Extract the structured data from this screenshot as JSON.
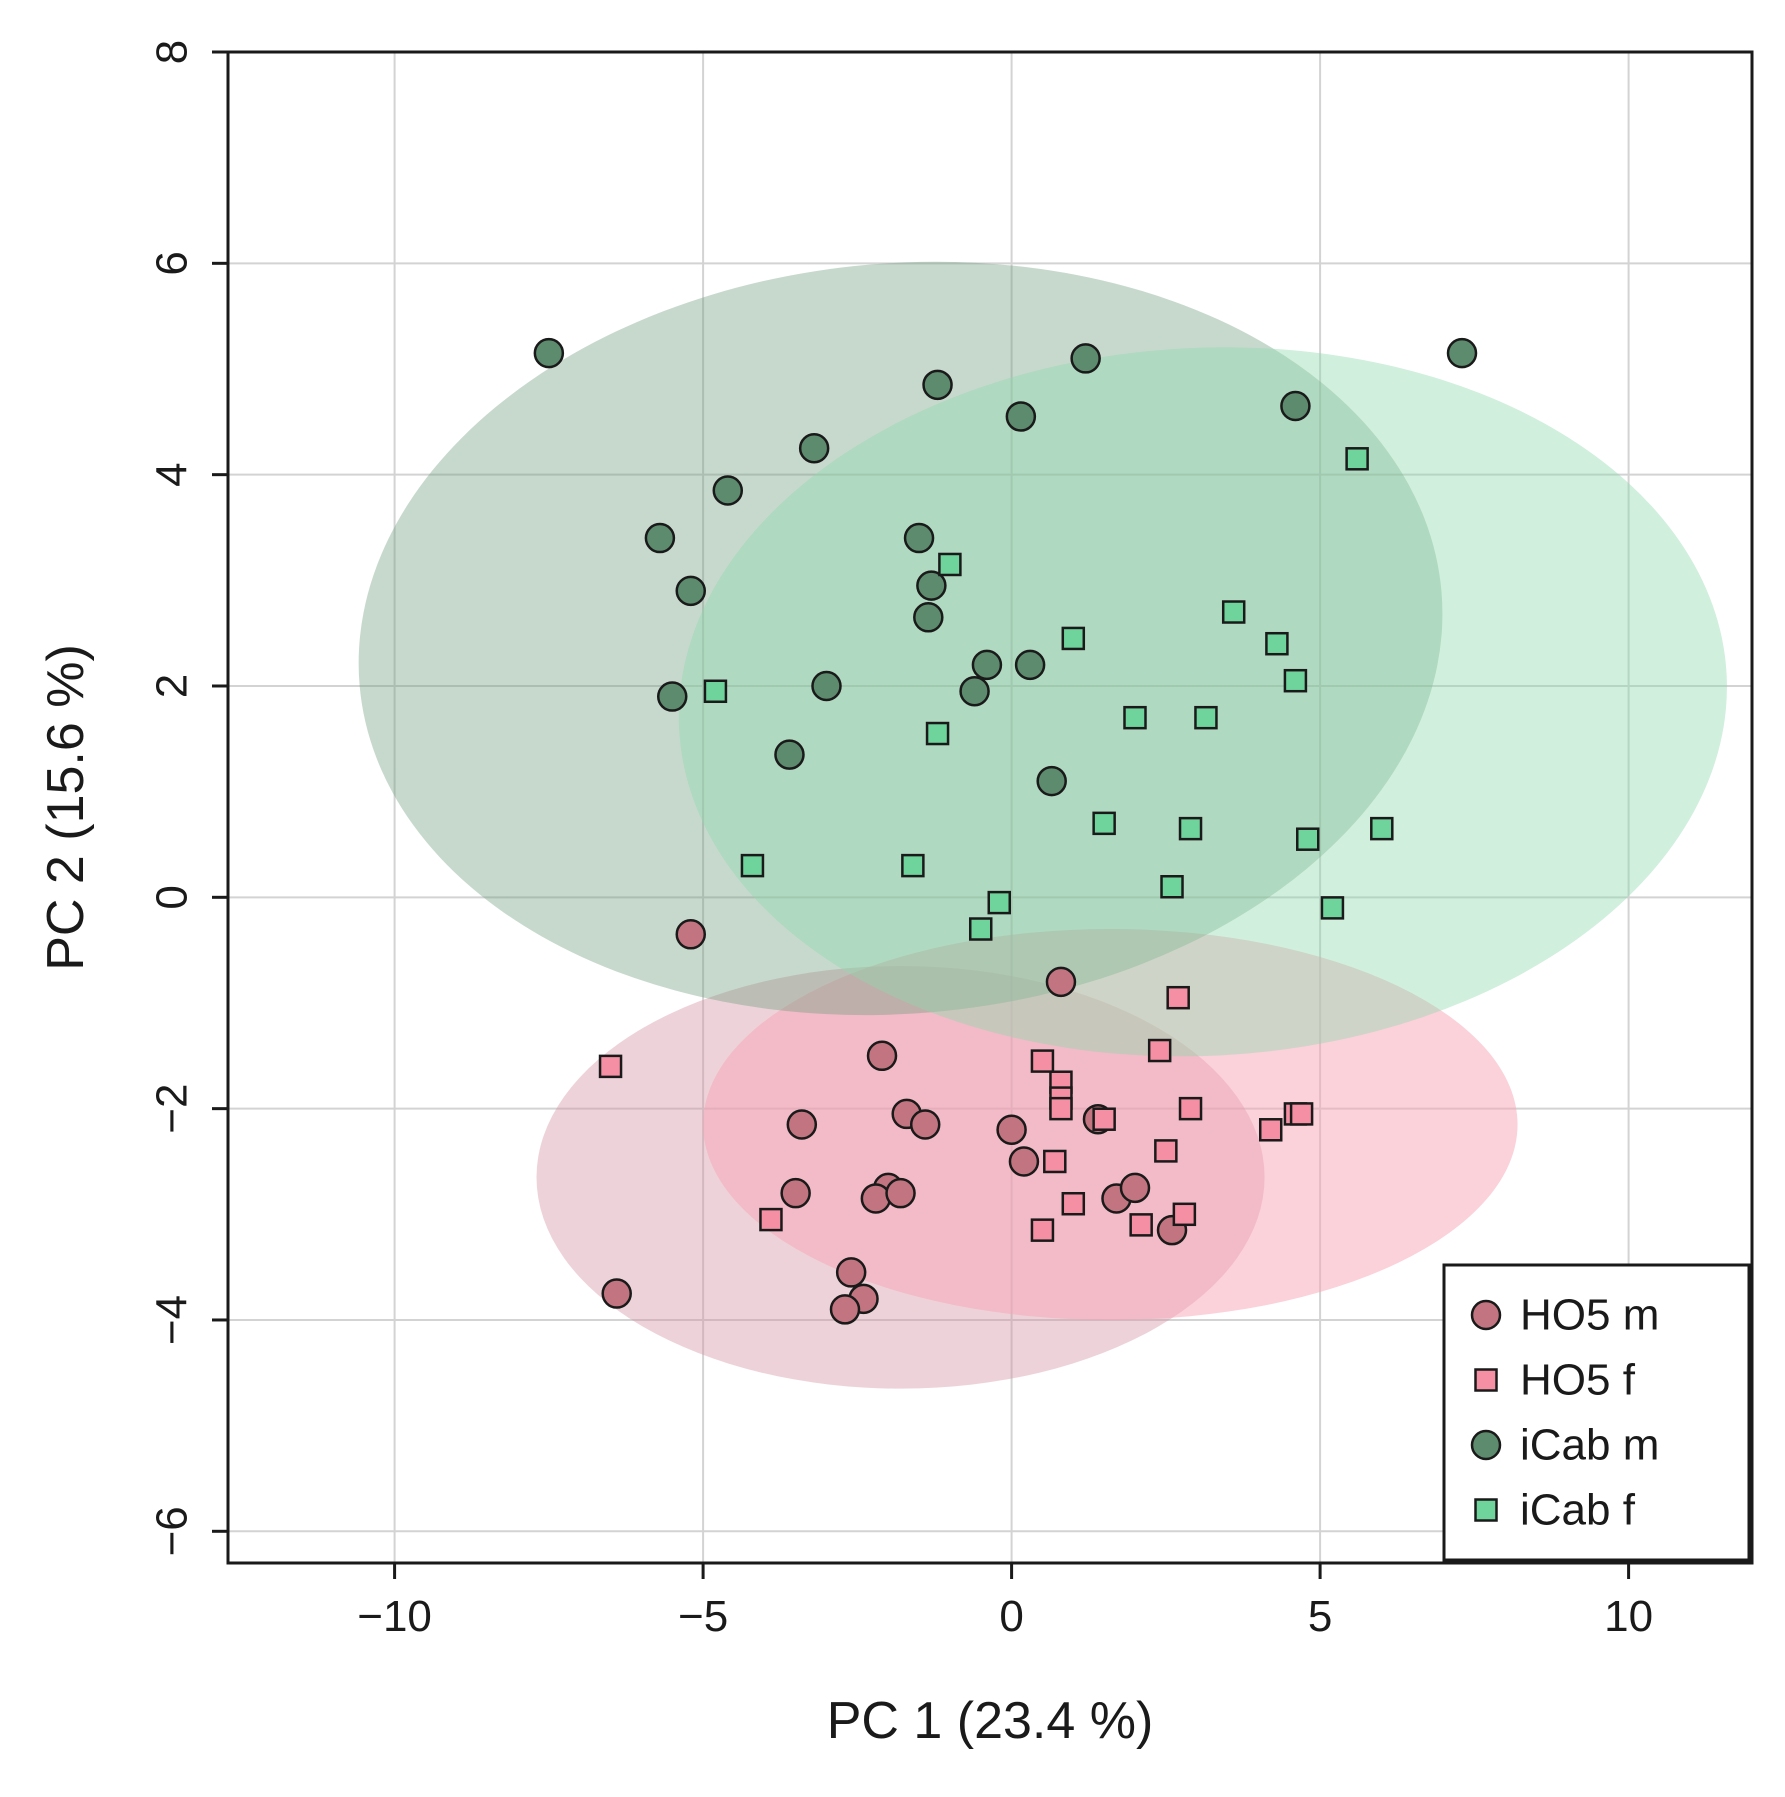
{
  "chart_data": {
    "type": "scatter",
    "title": "",
    "xlabel": "PC 1 (23.4 %)",
    "ylabel": "PC 2 (15.6 %)",
    "xlim": [
      -12.7,
      12.0
    ],
    "ylim": [
      -6.3,
      8.0
    ],
    "xticks": [
      -10,
      -5,
      0,
      5,
      10
    ],
    "xtick_labels": [
      "−10",
      "−5",
      "0",
      "5",
      "10"
    ],
    "yticks": [
      -6,
      -4,
      -2,
      0,
      2,
      4,
      6,
      8
    ],
    "ytick_labels": [
      "−6",
      "−4",
      "−2",
      "0",
      "2",
      "4",
      "6",
      "8"
    ],
    "grid": true,
    "legend_position": "bottom-right",
    "series": [
      {
        "name": "HO5 m",
        "marker": "circle",
        "color": "#c27580",
        "ellipse": {
          "cx": -1.8,
          "cy": -2.65,
          "rx": 5.9,
          "ry": 2.0,
          "angle_deg": 0,
          "fill": "#d497a5",
          "opacity": 0.42
        },
        "points": [
          [
            -5.2,
            -0.35
          ],
          [
            0.8,
            -0.8
          ],
          [
            -2.1,
            -1.5
          ],
          [
            -3.4,
            -2.15
          ],
          [
            -1.7,
            -2.05
          ],
          [
            -1.4,
            -2.15
          ],
          [
            0.0,
            -2.2
          ],
          [
            1.4,
            -2.1
          ],
          [
            0.2,
            -2.5
          ],
          [
            -3.5,
            -2.8
          ],
          [
            -2.0,
            -2.75
          ],
          [
            -2.2,
            -2.85
          ],
          [
            -1.8,
            -2.8
          ],
          [
            1.7,
            -2.85
          ],
          [
            2.0,
            -2.75
          ],
          [
            2.6,
            -3.15
          ],
          [
            -2.6,
            -3.55
          ],
          [
            -2.4,
            -3.8
          ],
          [
            -2.7,
            -3.9
          ],
          [
            -6.4,
            -3.75
          ]
        ]
      },
      {
        "name": "HO5 f",
        "marker": "square",
        "color": "#f58fa3",
        "ellipse": {
          "cx": 1.6,
          "cy": -2.15,
          "rx": 6.6,
          "ry": 1.85,
          "angle_deg": 0,
          "fill": "#f7a3b6",
          "opacity": 0.5
        },
        "points": [
          [
            -6.5,
            -1.6
          ],
          [
            2.7,
            -0.95
          ],
          [
            2.4,
            -1.45
          ],
          [
            0.5,
            -1.55
          ],
          [
            0.8,
            -1.75
          ],
          [
            0.8,
            -1.9
          ],
          [
            0.8,
            -2.0
          ],
          [
            2.9,
            -2.0
          ],
          [
            1.5,
            -2.1
          ],
          [
            4.6,
            -2.05
          ],
          [
            4.7,
            -2.05
          ],
          [
            4.2,
            -2.2
          ],
          [
            2.5,
            -2.4
          ],
          [
            0.7,
            -2.5
          ],
          [
            1.0,
            -2.9
          ],
          [
            -3.9,
            -3.05
          ],
          [
            2.8,
            -3.0
          ],
          [
            2.1,
            -3.1
          ],
          [
            0.5,
            -3.15
          ]
        ]
      },
      {
        "name": "iCab m",
        "marker": "circle",
        "color": "#5c8b6e",
        "ellipse": {
          "cx": -1.8,
          "cy": 2.45,
          "rx": 8.8,
          "ry": 3.55,
          "angle_deg": -5,
          "fill": "#6b9a7c",
          "opacity": 0.38
        },
        "points": [
          [
            -7.5,
            5.15
          ],
          [
            1.2,
            5.1
          ],
          [
            7.3,
            5.15
          ],
          [
            -1.2,
            4.85
          ],
          [
            0.15,
            4.55
          ],
          [
            4.6,
            4.65
          ],
          [
            -3.2,
            4.25
          ],
          [
            -4.6,
            3.85
          ],
          [
            -5.7,
            3.4
          ],
          [
            -1.5,
            3.4
          ],
          [
            -5.2,
            2.9
          ],
          [
            -1.3,
            2.95
          ],
          [
            -1.35,
            2.65
          ],
          [
            -0.4,
            2.2
          ],
          [
            0.3,
            2.2
          ],
          [
            -3.0,
            2.0
          ],
          [
            -0.6,
            1.95
          ],
          [
            -5.5,
            1.9
          ],
          [
            -3.6,
            1.35
          ],
          [
            0.65,
            1.1
          ]
        ]
      },
      {
        "name": "iCab f",
        "marker": "square",
        "color": "#6fd39c",
        "ellipse": {
          "cx": 3.1,
          "cy": 1.85,
          "rx": 8.5,
          "ry": 3.35,
          "angle_deg": -3,
          "fill": "#8fd9ae",
          "opacity": 0.42
        },
        "points": [
          [
            5.6,
            4.15
          ],
          [
            -1.0,
            3.15
          ],
          [
            3.6,
            2.7
          ],
          [
            1.0,
            2.45
          ],
          [
            4.3,
            2.4
          ],
          [
            4.6,
            2.05
          ],
          [
            -4.8,
            1.95
          ],
          [
            2.0,
            1.7
          ],
          [
            3.15,
            1.7
          ],
          [
            -1.2,
            1.55
          ],
          [
            1.5,
            0.7
          ],
          [
            2.9,
            0.65
          ],
          [
            4.8,
            0.55
          ],
          [
            6.0,
            0.65
          ],
          [
            -4.2,
            0.3
          ],
          [
            -1.6,
            0.3
          ],
          [
            2.6,
            0.1
          ],
          [
            -0.2,
            -0.05
          ],
          [
            5.2,
            -0.1
          ],
          [
            -0.5,
            -0.3
          ]
        ]
      }
    ]
  }
}
